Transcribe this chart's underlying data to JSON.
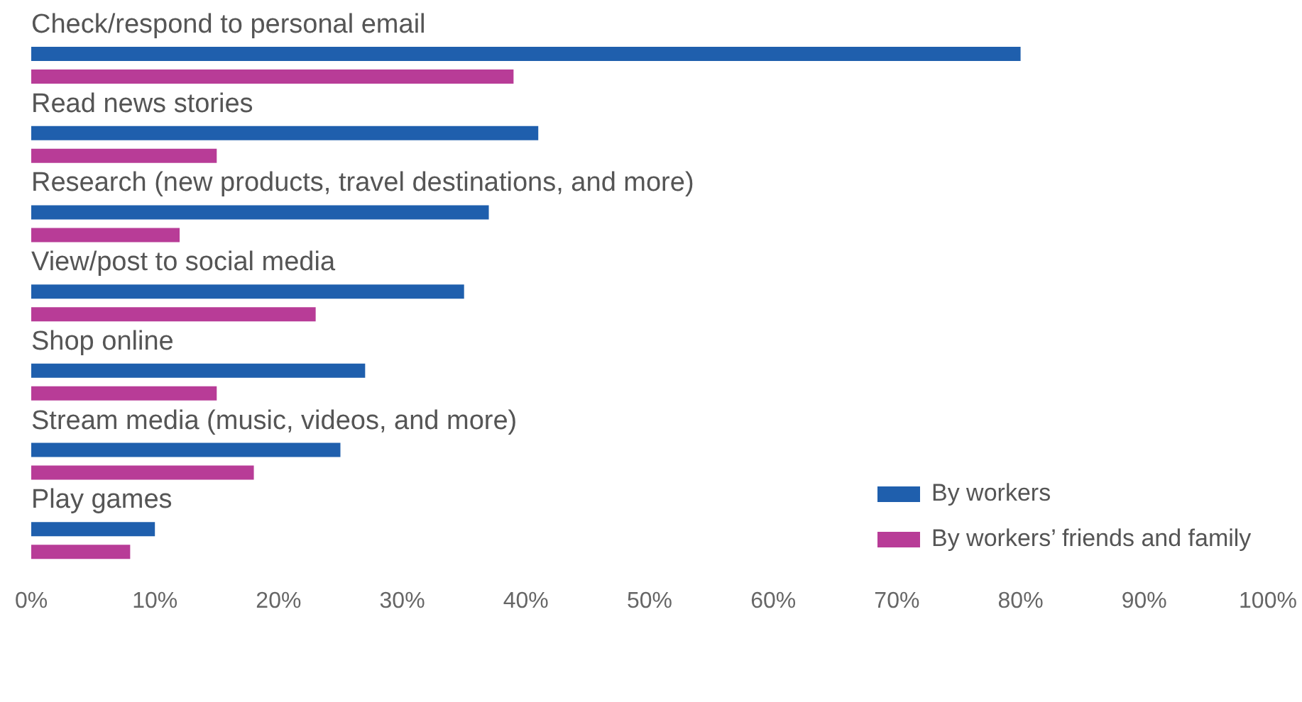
{
  "chart_data": {
    "type": "bar",
    "orientation": "horizontal",
    "categories": [
      "Check/respond to personal email",
      "Read news stories",
      "Research (new products, travel destinations, and more)",
      "View/post to social media",
      "Shop online",
      "Stream media (music, videos, and more)",
      "Play games"
    ],
    "series": [
      {
        "name": "By workers",
        "color": "#1f5fad",
        "values": [
          80,
          41,
          37,
          35,
          27,
          25,
          10
        ]
      },
      {
        "name": "By workers’ friends and family",
        "color": "#b83c97",
        "values": [
          39,
          15,
          12,
          23,
          15,
          18,
          8
        ]
      }
    ],
    "xlim": [
      0,
      100
    ],
    "xticks": [
      {
        "value": 0,
        "label": "0%"
      },
      {
        "value": 10,
        "label": "10%"
      },
      {
        "value": 20,
        "label": "20%"
      },
      {
        "value": 30,
        "label": "30%"
      },
      {
        "value": 40,
        "label": "40%"
      },
      {
        "value": 50,
        "label": "50%"
      },
      {
        "value": 60,
        "label": "60%"
      },
      {
        "value": 70,
        "label": "70%"
      },
      {
        "value": 80,
        "label": "80%"
      },
      {
        "value": 90,
        "label": "90%"
      },
      {
        "value": 100,
        "label": "100%"
      }
    ],
    "grid": false,
    "legend": "bottom right"
  }
}
